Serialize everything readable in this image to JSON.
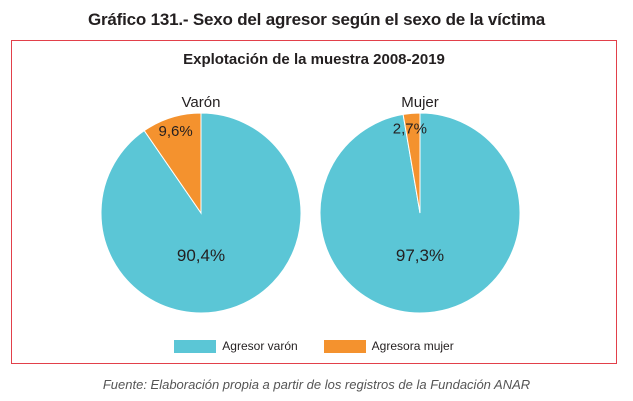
{
  "figure_title": "Gráfico 131.- Sexo del agresor según el sexo de la víctima",
  "source": "Fuente: Elaboración propia a partir de los registros de la Fundación ANAR",
  "colors": {
    "varon": "#5bc6d6",
    "mujer": "#f4922e",
    "frame": "#e2404a"
  },
  "chart_data": {
    "type": "pie",
    "title": "Explotación de la muestra 2008-2019",
    "legend_position": "bottom",
    "series_labels": [
      "Agresor varón",
      "Agresora mujer"
    ],
    "pies": [
      {
        "name": "Varón",
        "slices": [
          {
            "label": "Agresor varón",
            "value": 90.4,
            "text": "90,4%"
          },
          {
            "label": "Agresora mujer",
            "value": 9.6,
            "text": "9,6%"
          }
        ]
      },
      {
        "name": "Mujer",
        "slices": [
          {
            "label": "Agresor varón",
            "value": 97.3,
            "text": "97,3%"
          },
          {
            "label": "Agresora mujer",
            "value": 2.7,
            "text": "2,7%"
          }
        ]
      }
    ]
  }
}
